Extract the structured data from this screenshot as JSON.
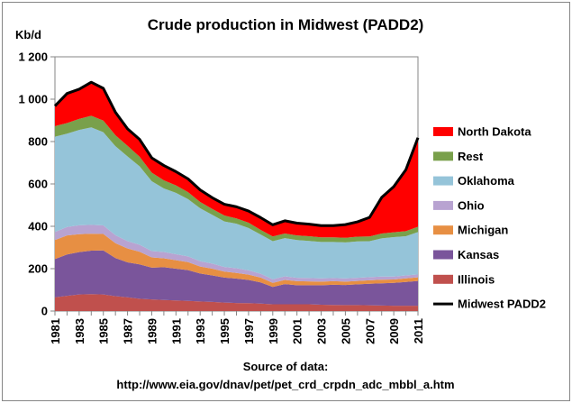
{
  "chart_data": {
    "type": "area",
    "title": "Crude production in Midwest (PADD2)",
    "ylabel": "Kb/d",
    "xlabel": "",
    "ylim": [
      0,
      1200
    ],
    "yticks": [
      0,
      200,
      400,
      600,
      800,
      1000,
      1200
    ],
    "ytick_labels": [
      "0",
      "200",
      "400",
      "600",
      "800",
      "1 000",
      "1 200"
    ],
    "x": [
      1981,
      1982,
      1983,
      1984,
      1985,
      1986,
      1987,
      1988,
      1989,
      1990,
      1991,
      1992,
      1993,
      1994,
      1995,
      1996,
      1997,
      1998,
      1999,
      2000,
      2001,
      2002,
      2003,
      2004,
      2005,
      2006,
      2007,
      2008,
      2009,
      2010,
      2011
    ],
    "xtick_labels": [
      "1981",
      "1983",
      "1985",
      "1987",
      "1989",
      "1991",
      "1993",
      "1995",
      "1997",
      "1999",
      "2001",
      "2003",
      "2005",
      "2007",
      "2009",
      "2011"
    ],
    "grid": false,
    "legend": "right",
    "stacked": true,
    "series": [
      {
        "name": "Illinois",
        "color": "#c0504d",
        "values": [
          65,
          72,
          78,
          80,
          78,
          70,
          65,
          58,
          55,
          52,
          50,
          48,
          45,
          43,
          40,
          38,
          37,
          35,
          32,
          32,
          32,
          32,
          30,
          29,
          28,
          28,
          27,
          26,
          25,
          25,
          25
        ]
      },
      {
        "name": "Kansas",
        "color": "#7a559b",
        "values": [
          180,
          195,
          200,
          205,
          208,
          180,
          165,
          162,
          150,
          155,
          150,
          145,
          132,
          125,
          118,
          115,
          110,
          100,
          82,
          95,
          90,
          90,
          92,
          95,
          95,
          98,
          102,
          105,
          108,
          112,
          117
        ]
      },
      {
        "name": "Michigan",
        "color": "#e78f43",
        "values": [
          90,
          90,
          85,
          80,
          78,
          70,
          65,
          60,
          48,
          42,
          40,
          38,
          33,
          32,
          28,
          27,
          25,
          23,
          19,
          20,
          19,
          18,
          17,
          17,
          16,
          16,
          16,
          17,
          16,
          17,
          17
        ]
      },
      {
        "name": "Ohio",
        "color": "#b8a3d1",
        "values": [
          38,
          40,
          42,
          42,
          40,
          38,
          35,
          33,
          30,
          30,
          28,
          27,
          25,
          24,
          22,
          22,
          20,
          18,
          17,
          17,
          16,
          16,
          15,
          15,
          15,
          15,
          15,
          15,
          14,
          14,
          14
        ]
      },
      {
        "name": "Oklahoma",
        "color": "#95c4d9",
        "values": [
          450,
          440,
          450,
          460,
          440,
          420,
          400,
          370,
          330,
          300,
          290,
          270,
          250,
          230,
          215,
          210,
          200,
          185,
          180,
          180,
          178,
          175,
          172,
          170,
          170,
          172,
          170,
          180,
          186,
          185,
          200
        ]
      },
      {
        "name": "Rest",
        "color": "#79a04b",
        "values": [
          50,
          50,
          52,
          55,
          55,
          52,
          50,
          45,
          40,
          38,
          35,
          33,
          30,
          28,
          28,
          25,
          25,
          22,
          22,
          22,
          22,
          22,
          22,
          22,
          22,
          22,
          22,
          23,
          23,
          24,
          25
        ]
      },
      {
        "name": "North Dakota",
        "color": "#ff0000",
        "values": [
          95,
          140,
          140,
          158,
          152,
          108,
          80,
          82,
          70,
          70,
          65,
          63,
          57,
          53,
          53,
          55,
          55,
          58,
          55,
          60,
          58,
          57,
          55,
          55,
          62,
          70,
          90,
          170,
          215,
          290,
          420
        ]
      }
    ],
    "total": {
      "name": "Midwest PADD2",
      "color": "#000000",
      "values": [
        968,
        1027,
        1047,
        1080,
        1051,
        938,
        860,
        810,
        723,
        687,
        658,
        624,
        572,
        535,
        504,
        492,
        472,
        441,
        407,
        426,
        415,
        410,
        403,
        403,
        408,
        421,
        442,
        536,
        587,
        667,
        818
      ]
    },
    "source_line1": "Source of data:",
    "source_line2": "http://www.eia.gov/dnav/pet/pet_crd_crpdn_adc_mbbl_a.htm",
    "legend_order": [
      "North Dakota",
      "Rest",
      "Oklahoma",
      "Ohio",
      "Michigan",
      "Kansas",
      "Illinois",
      "Midwest PADD2"
    ]
  }
}
